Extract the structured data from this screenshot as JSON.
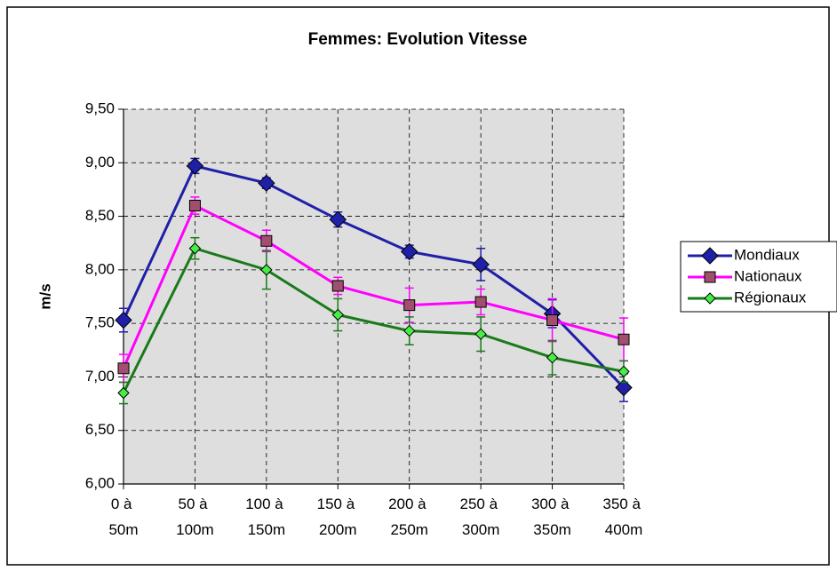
{
  "chart_data": {
    "type": "line",
    "title": "Femmes: Evolution Vitesse",
    "y_label": "m/s",
    "categories": [
      "0 à 50m",
      "50 à 100m",
      "100 à 150m",
      "150 à 200m",
      "200 à 250m",
      "250 à 300m",
      "300 à 350m",
      "350 à 400m"
    ],
    "series": [
      {
        "name": "Mondiaux",
        "color": "#1f1fa8",
        "marker": "diamond-large",
        "values": [
          7.53,
          8.97,
          8.81,
          8.47,
          8.17,
          8.05,
          7.59,
          6.9
        ],
        "errors": [
          0.11,
          0.07,
          0.05,
          0.07,
          0.06,
          0.15,
          0.13,
          0.13
        ]
      },
      {
        "name": "Nationaux",
        "color": "#ff00ff",
        "marker": "square",
        "values": [
          7.08,
          8.6,
          8.27,
          7.85,
          7.67,
          7.7,
          7.53,
          7.35
        ],
        "errors": [
          0.13,
          0.08,
          0.1,
          0.08,
          0.16,
          0.12,
          0.2,
          0.2
        ]
      },
      {
        "name": "Régionaux",
        "color": "#1a7a1a",
        "marker": "diamond",
        "values": [
          6.85,
          8.2,
          8.0,
          7.58,
          7.43,
          7.4,
          7.18,
          7.05
        ],
        "errors": [
          0.1,
          0.1,
          0.18,
          0.15,
          0.13,
          0.16,
          0.16,
          0.1
        ]
      }
    ],
    "ylim": [
      6.0,
      9.5
    ],
    "yticks": [
      {
        "value": 6.0,
        "label": "6,00"
      },
      {
        "value": 6.5,
        "label": "6,50"
      },
      {
        "value": 7.0,
        "label": "7,00"
      },
      {
        "value": 7.5,
        "label": "7,50"
      },
      {
        "value": 8.0,
        "label": "8,00"
      },
      {
        "value": 8.5,
        "label": "8,50"
      },
      {
        "value": 9.0,
        "label": "9,00"
      },
      {
        "value": 9.5,
        "label": "9,50"
      }
    ],
    "grid": true,
    "legend": "right"
  }
}
